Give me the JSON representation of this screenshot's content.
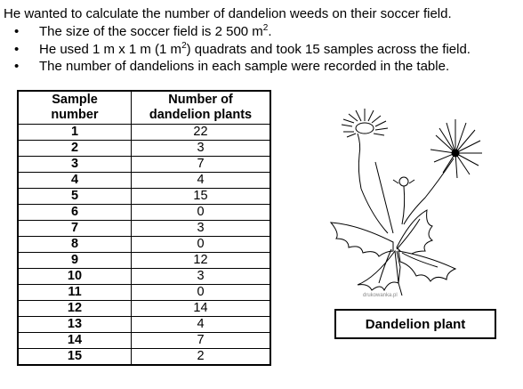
{
  "intro": "He wanted to calculate the number of dandelion weeds on their soccer field.",
  "bullets": [
    {
      "text": "The size of the soccer field  is 2 500 m",
      "sup": "2",
      "tail": "."
    },
    {
      "text": "He used 1 m x 1 m (1 m",
      "sup": "2",
      "tail": ") quadrats and took 15 samples across the field."
    },
    {
      "text": "The number of dandelions in each sample were recorded in the table.",
      "sup": "",
      "tail": ""
    }
  ],
  "table": {
    "headers": [
      "Sample number",
      "Number of dandelion plants"
    ],
    "rows": [
      [
        "1",
        "22"
      ],
      [
        "2",
        "3"
      ],
      [
        "3",
        "7"
      ],
      [
        "4",
        "4"
      ],
      [
        "5",
        "15"
      ],
      [
        "6",
        "0"
      ],
      [
        "7",
        "3"
      ],
      [
        "8",
        "0"
      ],
      [
        "9",
        "12"
      ],
      [
        "10",
        "3"
      ],
      [
        "11",
        "0"
      ],
      [
        "12",
        "14"
      ],
      [
        "13",
        "4"
      ],
      [
        "14",
        "7"
      ],
      [
        "15",
        "2"
      ]
    ]
  },
  "image": {
    "icon": "dandelion-plant-illustration",
    "watermark": "drukowanka.pl"
  },
  "caption": "Dandelion plant"
}
